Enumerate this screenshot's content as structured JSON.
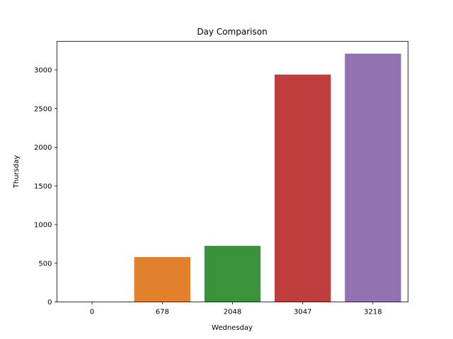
{
  "chart_data": {
    "type": "bar",
    "title": "Day Comparison",
    "xlabel": "Wednesday",
    "ylabel": "Thursday",
    "categories": [
      "0",
      "678",
      "2048",
      "3047",
      "3218"
    ],
    "values": [
      0,
      580,
      725,
      2940,
      3210
    ],
    "colors": [
      "#1f77b4",
      "#e1812c",
      "#3a923a",
      "#c03d3e",
      "#9372b2"
    ],
    "ylim": [
      0,
      3370
    ],
    "yticks": [
      0,
      500,
      1000,
      1500,
      2000,
      2500,
      3000
    ],
    "grid": false,
    "legend": "none"
  }
}
